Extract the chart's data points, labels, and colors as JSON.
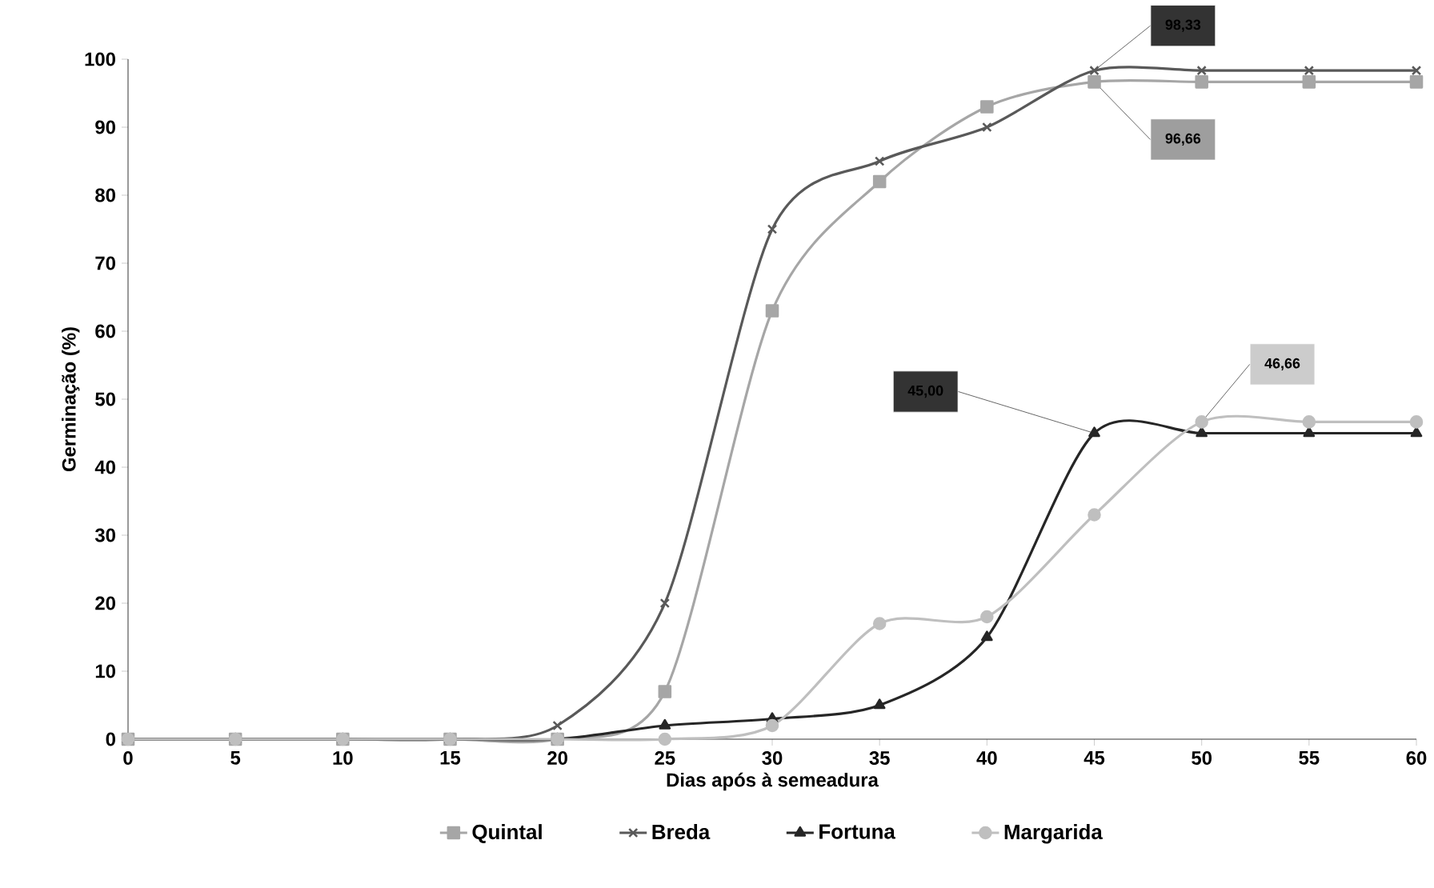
{
  "chart_data": {
    "type": "line",
    "xlabel": "Dias após à semeadura",
    "ylabel": "Germinação (%)",
    "x": [
      0,
      5,
      10,
      15,
      20,
      25,
      30,
      35,
      40,
      45,
      50,
      55,
      60
    ],
    "xlim": [
      0,
      60
    ],
    "xticks": [
      0,
      5,
      10,
      15,
      20,
      25,
      30,
      35,
      40,
      45,
      50,
      55,
      60
    ],
    "ylim": [
      0,
      100
    ],
    "yticks": [
      0,
      10,
      20,
      30,
      40,
      50,
      60,
      70,
      80,
      90,
      100
    ],
    "grid": false,
    "legend": "bottom",
    "line_style": "solid",
    "series": [
      {
        "name": "Quintal",
        "color": "#a6a6a6",
        "marker": "square",
        "values": [
          0,
          0,
          0,
          0,
          0,
          7,
          63,
          82,
          93,
          96.66,
          96.66,
          96.66,
          96.66
        ],
        "value_labels": [
          null,
          null,
          null,
          null,
          null,
          null,
          null,
          null,
          null,
          "96,66",
          null,
          null,
          null
        ]
      },
      {
        "name": "Breda",
        "color": "#595959",
        "marker": "cross",
        "values": [
          0,
          0,
          0,
          0,
          2,
          20,
          75,
          85,
          90,
          98.33,
          98.33,
          98.33,
          98.33
        ],
        "value_labels": [
          null,
          null,
          null,
          null,
          null,
          null,
          null,
          null,
          null,
          "98,33",
          null,
          null,
          null
        ]
      },
      {
        "name": "Fortuna",
        "color": "#262626",
        "marker": "triangle",
        "values": [
          0,
          0,
          0,
          0,
          0,
          2,
          3,
          5,
          15,
          45,
          45,
          45,
          45
        ],
        "value_labels": [
          null,
          null,
          null,
          null,
          null,
          null,
          null,
          null,
          null,
          "45,00",
          null,
          null,
          null
        ]
      },
      {
        "name": "Margarida",
        "color": "#bfbfbf",
        "marker": "circle",
        "values": [
          0,
          0,
          0,
          0,
          0,
          0,
          2,
          17,
          18,
          33,
          46.66,
          46.66,
          46.66
        ],
        "value_labels": [
          null,
          null,
          null,
          null,
          null,
          null,
          null,
          null,
          null,
          null,
          "46,66",
          null,
          null
        ]
      }
    ]
  }
}
